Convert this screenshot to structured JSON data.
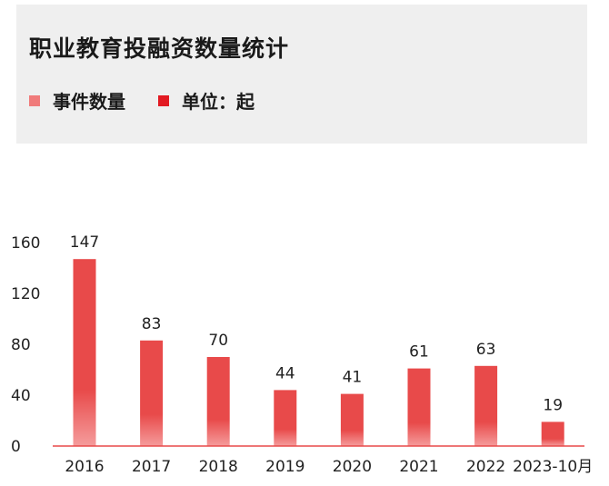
{
  "header": {
    "title": "职业教育投融资数量统计"
  },
  "legend": {
    "series_label": "事件数量",
    "unit_label": "单位：起"
  },
  "colors": {
    "bar_top": "#e84a4a",
    "bar_bottom": "#f59c9c",
    "series_swatch": "#f07b7b",
    "unit_swatch": "#e21a22"
  },
  "chart_data": {
    "type": "bar",
    "title": "职业教育投融资数量统计",
    "categories": [
      "2016",
      "2017",
      "2018",
      "2019",
      "2020",
      "2021",
      "2022",
      "2023-10月"
    ],
    "series": [
      {
        "name": "事件数量",
        "values": [
          147,
          83,
          70,
          44,
          41,
          61,
          63,
          19
        ]
      }
    ],
    "unit": "单位：起",
    "ylim": [
      0,
      160
    ],
    "yticks": [
      0,
      40,
      80,
      120,
      160
    ],
    "grid": false,
    "legend_position": "top-left"
  }
}
